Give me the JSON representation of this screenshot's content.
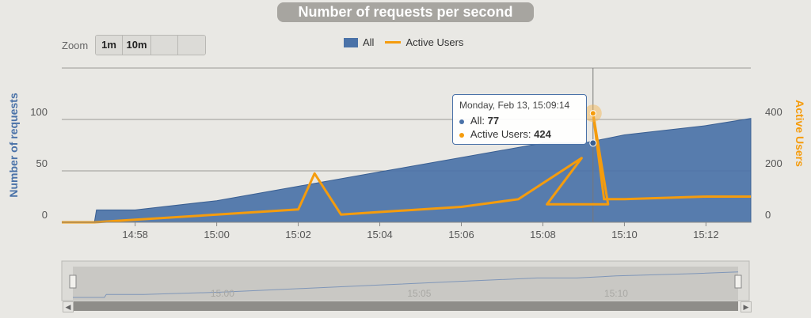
{
  "title": "Number of requests per second",
  "zoom": {
    "label": "Zoom",
    "buttons": [
      "1m",
      "10m",
      "",
      ""
    ]
  },
  "legend": [
    {
      "name": "All",
      "color": "#4a72a8"
    },
    {
      "name": "Active Users",
      "color": "#f59c0d"
    }
  ],
  "tooltip": {
    "date": "Monday, Feb 13, 15:09:14",
    "all_label": "All:",
    "all_value": "77",
    "users_label": "Active Users:",
    "users_value": "424"
  },
  "navigator": {
    "ticks": [
      "15:00",
      "15:05",
      "15:10"
    ]
  },
  "chart_data": {
    "type": "area",
    "title": "Number of requests per second",
    "xlabel": "",
    "ylabel": "Number of requests",
    "ylabel_right": "Active Users",
    "x_ticks": [
      "14:58",
      "15:00",
      "15:02",
      "15:04",
      "15:06",
      "15:08",
      "15:10",
      "15:12"
    ],
    "y_ticks_left": [
      "0",
      "50",
      "100"
    ],
    "y_ticks_right": [
      "0",
      "200",
      "400"
    ],
    "ylim_left": [
      0,
      150
    ],
    "ylim_right": [
      0,
      600
    ],
    "series": [
      {
        "name": "All",
        "type": "area",
        "axis": "left",
        "color": "#4a72a8",
        "x": [
          "14:56",
          "14:57",
          "14:57",
          "14:58",
          "15:00",
          "15:02",
          "15:04",
          "15:06",
          "15:08",
          "15:09",
          "15:10",
          "15:12",
          "15:13"
        ],
        "values": [
          0,
          0,
          12,
          12,
          21,
          35,
          49,
          63,
          77,
          77,
          85,
          94,
          101
        ]
      },
      {
        "name": "Active Users",
        "type": "line",
        "axis": "right",
        "color": "#f59c0d",
        "x": [
          "14:56",
          "14:57",
          "14:58",
          "15:00",
          "15:02",
          "15:02",
          "15:03",
          "15:04",
          "15:06",
          "15:07",
          "15:08",
          "15:08",
          "15:09",
          "15:09",
          "15:09",
          "15:10",
          "15:12",
          "15:13"
        ],
        "values": [
          0,
          0,
          10,
          30,
          50,
          190,
          30,
          40,
          60,
          90,
          250,
          70,
          70,
          424,
          90,
          90,
          100,
          100
        ]
      }
    ],
    "grid": true,
    "legend_position": "top"
  }
}
